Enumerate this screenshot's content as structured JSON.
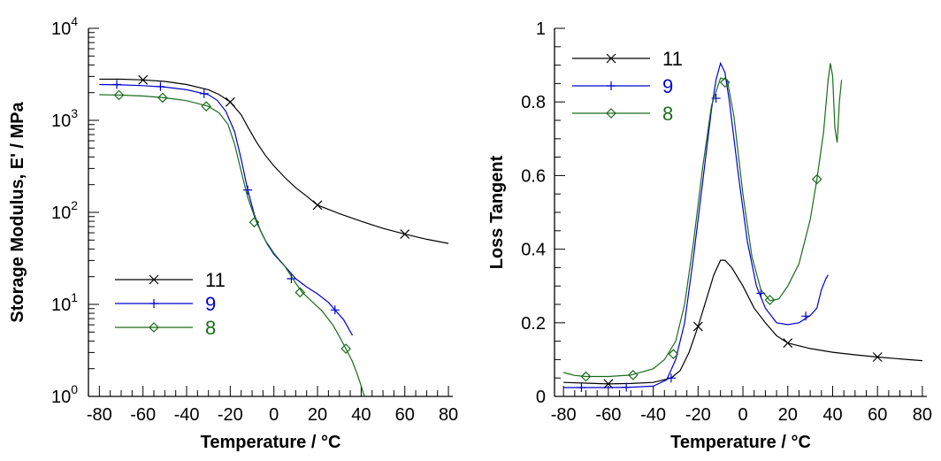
{
  "colors": {
    "11": "#000000",
    "9": "#0000cc",
    "8": "#1a6b1a"
  },
  "chart_data": [
    {
      "type": "line",
      "xlabel": "Temperature  / °C",
      "ylabel": "Storage Modulus, E' / MPa",
      "xlim": [
        -85,
        82
      ],
      "ylim": [
        1,
        10000
      ],
      "yscale": "log",
      "xticks": [
        -80,
        -60,
        -40,
        -20,
        0,
        20,
        40,
        60,
        80
      ],
      "xtick_labels": [
        "-80",
        "-60",
        "-40",
        "-20",
        "0",
        "20",
        "40",
        "60",
        "80"
      ],
      "yticks": [
        1,
        10,
        100,
        1000,
        10000
      ],
      "ytick_labels": [
        {
          "base": "10",
          "exp": "0"
        },
        {
          "base": "10",
          "exp": "1"
        },
        {
          "base": "10",
          "exp": "2"
        },
        {
          "base": "10",
          "exp": "3"
        },
        {
          "base": "10",
          "exp": "4"
        }
      ],
      "legend_position": "lower-left",
      "series": [
        {
          "name": "11",
          "color_key": "11",
          "marker": "x",
          "points": [
            [
              -80,
              2800
            ],
            [
              -70,
              2800
            ],
            [
              -60,
              2750
            ],
            [
              -50,
              2650
            ],
            [
              -40,
              2450
            ],
            [
              -30,
              2150
            ],
            [
              -25,
              1900
            ],
            [
              -20,
              1580
            ],
            [
              -15,
              1150
            ],
            [
              -12,
              850
            ],
            [
              -8,
              580
            ],
            [
              -4,
              420
            ],
            [
              0,
              320
            ],
            [
              5,
              240
            ],
            [
              10,
              185
            ],
            [
              15,
              150
            ],
            [
              20,
              120
            ],
            [
              30,
              97
            ],
            [
              40,
              80
            ],
            [
              50,
              67
            ],
            [
              60,
              58
            ],
            [
              70,
              51
            ],
            [
              80,
              46
            ]
          ],
          "markers": [
            [
              -60,
              2750
            ],
            [
              -20,
              1580
            ],
            [
              20,
              120
            ],
            [
              60,
              58
            ]
          ]
        },
        {
          "name": "9",
          "color_key": "9",
          "marker": "+",
          "points": [
            [
              -80,
              2450
            ],
            [
              -70,
              2430
            ],
            [
              -60,
              2380
            ],
            [
              -50,
              2300
            ],
            [
              -40,
              2150
            ],
            [
              -30,
              1900
            ],
            [
              -26,
              1650
            ],
            [
              -22,
              1250
            ],
            [
              -18,
              750
            ],
            [
              -15,
              380
            ],
            [
              -12,
              175
            ],
            [
              -9,
              95
            ],
            [
              -6,
              62
            ],
            [
              -3,
              45
            ],
            [
              0,
              35
            ],
            [
              5,
              26
            ],
            [
              10,
              19
            ],
            [
              15,
              15.5
            ],
            [
              20,
              13
            ],
            [
              25,
              10.5
            ],
            [
              28,
              8.7
            ],
            [
              32,
              6.8
            ],
            [
              36,
              4.6
            ]
          ],
          "markers": [
            [
              -72,
              2450
            ],
            [
              -52,
              2330
            ],
            [
              -32,
              1950
            ],
            [
              -12,
              175
            ],
            [
              8,
              19
            ],
            [
              28,
              8.7
            ]
          ]
        },
        {
          "name": "8",
          "color_key": "8",
          "marker": "diamond",
          "points": [
            [
              -80,
              1900
            ],
            [
              -70,
              1880
            ],
            [
              -60,
              1840
            ],
            [
              -50,
              1760
            ],
            [
              -40,
              1640
            ],
            [
              -30,
              1420
            ],
            [
              -25,
              1200
            ],
            [
              -21,
              900
            ],
            [
              -18,
              550
            ],
            [
              -15,
              280
            ],
            [
              -12,
              145
            ],
            [
              -8,
              78
            ],
            [
              -4,
              50
            ],
            [
              0,
              36
            ],
            [
              5,
              26
            ],
            [
              10,
              17
            ],
            [
              13,
              13.5
            ],
            [
              17,
              11
            ],
            [
              22,
              8.5
            ],
            [
              27,
              6
            ],
            [
              30,
              4.5
            ],
            [
              33,
              3.3
            ],
            [
              36,
              2.4
            ],
            [
              38,
              1.8
            ],
            [
              40,
              1.3
            ],
            [
              41,
              1.08
            ],
            [
              42,
              0.95
            ]
          ],
          "markers": [
            [
              -71,
              1880
            ],
            [
              -51,
              1760
            ],
            [
              -31,
              1420
            ],
            [
              -9,
              78
            ],
            [
              12,
              13.5
            ],
            [
              33,
              3.3
            ]
          ]
        }
      ]
    },
    {
      "type": "line",
      "xlabel": "Temperature  / °C",
      "ylabel": "Loss Tangent",
      "xlim": [
        -84,
        82
      ],
      "ylim": [
        0,
        1
      ],
      "yscale": "linear",
      "xticks": [
        -80,
        -60,
        -40,
        -20,
        0,
        20,
        40,
        60,
        80
      ],
      "xtick_labels": [
        "-80",
        "-60",
        "-40",
        "-20",
        "0",
        "20",
        "40",
        "60",
        "80"
      ],
      "yticks": [
        0,
        0.2,
        0.4,
        0.6,
        0.8,
        1
      ],
      "ytick_labels": [
        "0",
        "0.2",
        "0.4",
        "0.6",
        "0.8",
        "1"
      ],
      "legend_position": "top-left",
      "series": [
        {
          "name": "11",
          "color_key": "11",
          "marker": "x",
          "points": [
            [
              -80,
              0.038
            ],
            [
              -70,
              0.036
            ],
            [
              -60,
              0.034
            ],
            [
              -50,
              0.035
            ],
            [
              -40,
              0.038
            ],
            [
              -32,
              0.05
            ],
            [
              -28,
              0.07
            ],
            [
              -24,
              0.12
            ],
            [
              -20,
              0.19
            ],
            [
              -16,
              0.27
            ],
            [
              -13,
              0.33
            ],
            [
              -10,
              0.37
            ],
            [
              -8,
              0.37
            ],
            [
              -5,
              0.35
            ],
            [
              0,
              0.3
            ],
            [
              5,
              0.24
            ],
            [
              10,
              0.2
            ],
            [
              15,
              0.165
            ],
            [
              20,
              0.145
            ],
            [
              30,
              0.13
            ],
            [
              40,
              0.12
            ],
            [
              50,
              0.113
            ],
            [
              60,
              0.107
            ],
            [
              70,
              0.102
            ],
            [
              80,
              0.097
            ]
          ],
          "markers": [
            [
              -60,
              0.034
            ],
            [
              -20,
              0.19
            ],
            [
              20,
              0.145
            ],
            [
              60,
              0.107
            ]
          ]
        },
        {
          "name": "9",
          "color_key": "9",
          "marker": "+",
          "points": [
            [
              -80,
              0.024
            ],
            [
              -70,
              0.024
            ],
            [
              -60,
              0.024
            ],
            [
              -50,
              0.025
            ],
            [
              -40,
              0.028
            ],
            [
              -34,
              0.045
            ],
            [
              -30,
              0.1
            ],
            [
              -26,
              0.2
            ],
            [
              -22,
              0.38
            ],
            [
              -18,
              0.58
            ],
            [
              -14,
              0.78
            ],
            [
              -12,
              0.86
            ],
            [
              -10,
              0.905
            ],
            [
              -8,
              0.88
            ],
            [
              -6,
              0.8
            ],
            [
              -2,
              0.6
            ],
            [
              2,
              0.42
            ],
            [
              6,
              0.3
            ],
            [
              10,
              0.24
            ],
            [
              15,
              0.2
            ],
            [
              20,
              0.195
            ],
            [
              25,
              0.2
            ],
            [
              30,
              0.22
            ],
            [
              33,
              0.24
            ],
            [
              35,
              0.29
            ],
            [
              37,
              0.32
            ],
            [
              38,
              0.33
            ]
          ],
          "markers": [
            [
              -72,
              0.024
            ],
            [
              -52,
              0.025
            ],
            [
              -32,
              0.05
            ],
            [
              -12,
              0.81
            ],
            [
              8,
              0.28
            ],
            [
              28,
              0.218
            ]
          ]
        },
        {
          "name": "8",
          "color_key": "8",
          "marker": "diamond",
          "points": [
            [
              -80,
              0.065
            ],
            [
              -75,
              0.057
            ],
            [
              -70,
              0.054
            ],
            [
              -60,
              0.054
            ],
            [
              -50,
              0.058
            ],
            [
              -40,
              0.075
            ],
            [
              -35,
              0.1
            ],
            [
              -30,
              0.15
            ],
            [
              -26,
              0.25
            ],
            [
              -22,
              0.42
            ],
            [
              -18,
              0.62
            ],
            [
              -14,
              0.79
            ],
            [
              -10,
              0.865
            ],
            [
              -7,
              0.86
            ],
            [
              -4,
              0.76
            ],
            [
              0,
              0.55
            ],
            [
              4,
              0.38
            ],
            [
              8,
              0.29
            ],
            [
              12,
              0.26
            ],
            [
              16,
              0.265
            ],
            [
              20,
              0.3
            ],
            [
              25,
              0.36
            ],
            [
              30,
              0.48
            ],
            [
              33,
              0.59
            ],
            [
              36,
              0.72
            ],
            [
              38,
              0.86
            ],
            [
              39,
              0.905
            ],
            [
              40,
              0.87
            ],
            [
              41,
              0.73
            ],
            [
              42,
              0.69
            ],
            [
              43,
              0.8
            ],
            [
              44,
              0.86
            ]
          ],
          "markers": [
            [
              -70,
              0.054
            ],
            [
              -49,
              0.058
            ],
            [
              -31,
              0.115
            ],
            [
              -8,
              0.853
            ],
            [
              12,
              0.262
            ],
            [
              33,
              0.59
            ]
          ]
        }
      ]
    }
  ]
}
